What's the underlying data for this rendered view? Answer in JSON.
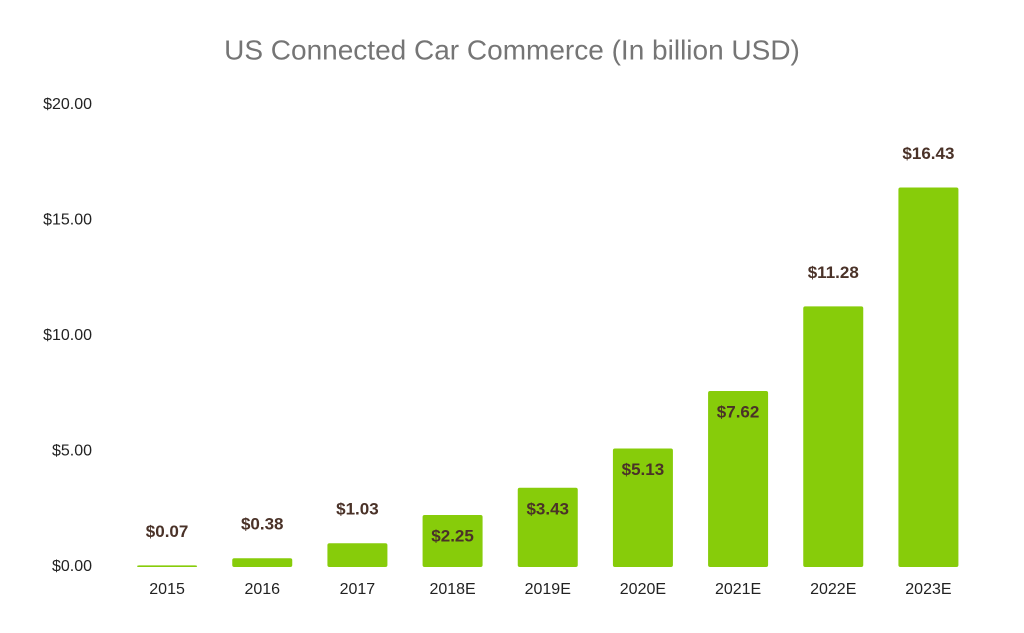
{
  "chart_data": {
    "type": "bar",
    "title": "US Connected Car Commerce (In billion USD)",
    "categories": [
      "2015",
      "2016",
      "2017",
      "2018E",
      "2019E",
      "2020E",
      "2021E",
      "2022E",
      "2023E"
    ],
    "values": [
      0.07,
      0.38,
      1.03,
      2.25,
      3.43,
      5.13,
      7.62,
      11.28,
      16.43
    ],
    "value_labels": [
      "$0.07",
      "$0.38",
      "$1.03",
      "$2.25",
      "$3.43",
      "$5.13",
      "$7.62",
      "$11.28",
      "$16.43"
    ],
    "color": "#87cc0a",
    "ylim": [
      0,
      20
    ],
    "yticks": [
      {
        "value": 0,
        "label": "$0.00"
      },
      {
        "value": 5,
        "label": "$5.00"
      },
      {
        "value": 10,
        "label": "$10.00"
      },
      {
        "value": 15,
        "label": "$15.00"
      },
      {
        "value": 20,
        "label": "$20.00"
      }
    ],
    "grid": false
  }
}
